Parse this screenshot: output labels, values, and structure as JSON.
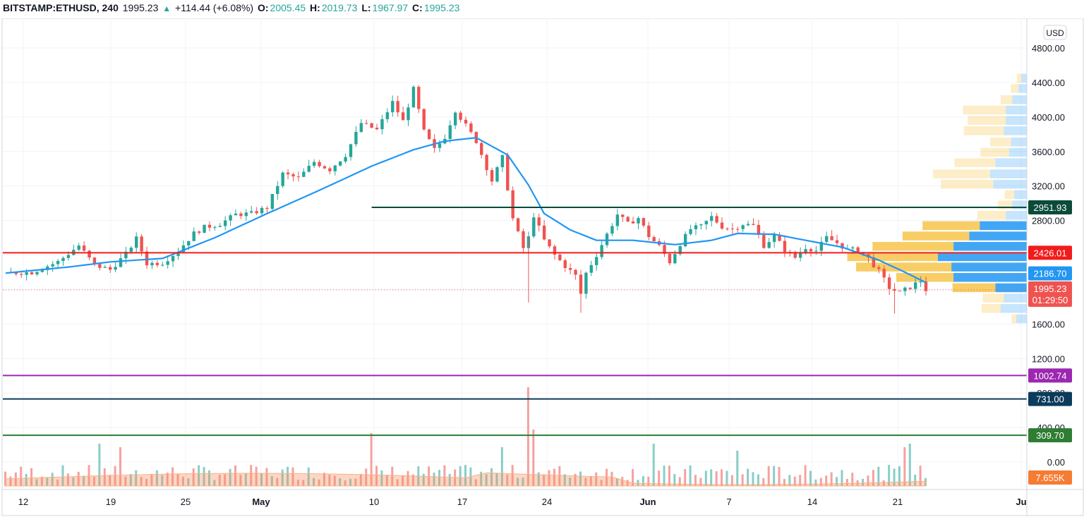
{
  "header": {
    "symbol": "BITSTAMP:ETHUSD, 240",
    "last": "1995.23",
    "change": "+114.44 (+6.08%)",
    "o_label": "O:",
    "o_value": "2005.45",
    "h_label": "H:",
    "h_value": "2019.73",
    "l_label": "L:",
    "l_value": "1967.97",
    "c_label": "C:",
    "c_value": "1995.23"
  },
  "colors": {
    "up": "#26a69a",
    "down": "#ef5350",
    "ma": "#2196f3",
    "vp_up": "#f7c44a",
    "vp_down": "#2196f3",
    "volume_ma": "#f5b48c"
  },
  "chart_data": {
    "type": "candlestick",
    "currency_label": "USD",
    "y_ticks": [
      "4800.00",
      "4400.00",
      "4000.00",
      "3600.00",
      "3200.00",
      "2800.00",
      "1600.00",
      "1200.00",
      "800.00",
      "400.00",
      "0.00"
    ],
    "y_range": [
      0,
      5000
    ],
    "x_ticks": [
      "12",
      "19",
      "25",
      "May",
      "10",
      "17",
      "24",
      "Jun",
      "7",
      "14",
      "21",
      "Ju"
    ],
    "horizontal_levels": [
      {
        "value": 2951.93,
        "label": "2951.93",
        "color": "#0b4b3a"
      },
      {
        "value": 2426.01,
        "label": "2426.01",
        "color": "#f11b1b"
      },
      {
        "value": 1002.74,
        "label": "1002.74",
        "color": "#9c27b0"
      },
      {
        "value": 731.0,
        "label": "731.00",
        "color": "#0c3b5c"
      },
      {
        "value": 309.7,
        "label": "309.70",
        "color": "#2e7d32"
      }
    ],
    "price_tags": [
      {
        "value": 2186.7,
        "label": "2186.70",
        "color": "#2196f3"
      },
      {
        "value": 1995.23,
        "label": "1995.23",
        "sublabel": "01:29:50",
        "color": "#ef5350"
      }
    ],
    "volume_tag": {
      "label": "7.655K",
      "color": "#f57c33"
    },
    "price_path": [
      [
        0,
        2190
      ],
      [
        5,
        2200
      ],
      [
        10,
        2320
      ],
      [
        14,
        2510
      ],
      [
        17,
        2280
      ],
      [
        20,
        2230
      ],
      [
        23,
        2410
      ],
      [
        25,
        2590
      ],
      [
        27,
        2300
      ],
      [
        30,
        2310
      ],
      [
        33,
        2450
      ],
      [
        36,
        2650
      ],
      [
        38,
        2720
      ],
      [
        41,
        2760
      ],
      [
        44,
        2870
      ],
      [
        47,
        2880
      ],
      [
        50,
        2950
      ],
      [
        53,
        3340
      ],
      [
        56,
        3290
      ],
      [
        59,
        3480
      ],
      [
        62,
        3390
      ],
      [
        65,
        3560
      ],
      [
        68,
        3930
      ],
      [
        71,
        3850
      ],
      [
        74,
        4170
      ],
      [
        76,
        3950
      ],
      [
        78,
        4320
      ],
      [
        80,
        3830
      ],
      [
        82,
        3620
      ],
      [
        84,
        3770
      ],
      [
        86,
        4080
      ],
      [
        88,
        3900
      ],
      [
        90,
        3720
      ],
      [
        93,
        3260
      ],
      [
        95,
        3530
      ],
      [
        97,
        2820
      ],
      [
        99,
        2480
      ],
      [
        100,
        2600
      ],
      [
        101,
        2860
      ],
      [
        103,
        2570
      ],
      [
        105,
        2400
      ],
      [
        107,
        2270
      ],
      [
        109,
        2160
      ],
      [
        110,
        1950
      ],
      [
        111,
        2190
      ],
      [
        113,
        2400
      ],
      [
        115,
        2640
      ],
      [
        117,
        2870
      ],
      [
        119,
        2760
      ],
      [
        121,
        2830
      ],
      [
        123,
        2620
      ],
      [
        125,
        2500
      ],
      [
        127,
        2320
      ],
      [
        129,
        2530
      ],
      [
        131,
        2700
      ],
      [
        133,
        2730
      ],
      [
        135,
        2840
      ],
      [
        137,
        2730
      ],
      [
        139,
        2700
      ],
      [
        141,
        2760
      ],
      [
        143,
        2740
      ],
      [
        145,
        2510
      ],
      [
        147,
        2620
      ],
      [
        149,
        2460
      ],
      [
        151,
        2370
      ],
      [
        153,
        2490
      ],
      [
        155,
        2450
      ],
      [
        157,
        2600
      ],
      [
        159,
        2540
      ],
      [
        161,
        2460
      ],
      [
        163,
        2460
      ],
      [
        165,
        2360
      ],
      [
        167,
        2210
      ],
      [
        169,
        2020
      ],
      [
        171,
        1960
      ],
      [
        173,
        2030
      ],
      [
        175,
        2100
      ],
      [
        176,
        1995
      ]
    ],
    "ema_path": [
      [
        0,
        2190
      ],
      [
        12,
        2260
      ],
      [
        20,
        2320
      ],
      [
        30,
        2360
      ],
      [
        40,
        2600
      ],
      [
        50,
        2880
      ],
      [
        60,
        3150
      ],
      [
        70,
        3430
      ],
      [
        78,
        3620
      ],
      [
        84,
        3720
      ],
      [
        90,
        3760
      ],
      [
        96,
        3560
      ],
      [
        100,
        3210
      ],
      [
        103,
        2880
      ],
      [
        108,
        2690
      ],
      [
        113,
        2570
      ],
      [
        120,
        2570
      ],
      [
        128,
        2520
      ],
      [
        135,
        2570
      ],
      [
        140,
        2650
      ],
      [
        147,
        2640
      ],
      [
        153,
        2570
      ],
      [
        160,
        2490
      ],
      [
        167,
        2340
      ],
      [
        172,
        2200
      ],
      [
        176,
        2080
      ]
    ],
    "volume_profile": [
      {
        "price": 4450,
        "up": 0.05,
        "down": 0.05
      },
      {
        "price": 4330,
        "up": 0.08,
        "down": 0.08
      },
      {
        "price": 4200,
        "up": 0.12,
        "down": 0.14
      },
      {
        "price": 4080,
        "up": 0.45,
        "down": 0.2
      },
      {
        "price": 3960,
        "up": 0.4,
        "down": 0.2
      },
      {
        "price": 3840,
        "up": 0.42,
        "down": 0.22
      },
      {
        "price": 3710,
        "up": 0.22,
        "down": 0.15
      },
      {
        "price": 3590,
        "up": 0.3,
        "down": 0.17
      },
      {
        "price": 3470,
        "up": 0.43,
        "down": 0.3
      },
      {
        "price": 3340,
        "up": 0.6,
        "down": 0.35
      },
      {
        "price": 3220,
        "up": 0.55,
        "down": 0.32
      },
      {
        "price": 3100,
        "up": 0.1,
        "down": 0.12
      },
      {
        "price": 2980,
        "up": 0.15,
        "down": 0.14
      },
      {
        "price": 2860,
        "up": 0.3,
        "down": 0.2
      },
      {
        "price": 2740,
        "up": 0.6,
        "down": 0.45
      },
      {
        "price": 2620,
        "up": 0.7,
        "down": 0.55
      },
      {
        "price": 2500,
        "up": 0.85,
        "down": 0.7
      },
      {
        "price": 2380,
        "up": 0.95,
        "down": 0.85
      },
      {
        "price": 2260,
        "up": 1.0,
        "down": 0.72
      },
      {
        "price": 2140,
        "up": 0.6,
        "down": 0.7
      },
      {
        "price": 2020,
        "up": 0.45,
        "down": 0.3
      },
      {
        "price": 1900,
        "up": 0.22,
        "down": 0.22
      },
      {
        "price": 1780,
        "up": 0.2,
        "down": 0.25
      },
      {
        "price": 1660,
        "up": 0.05,
        "down": 0.1
      }
    ]
  }
}
